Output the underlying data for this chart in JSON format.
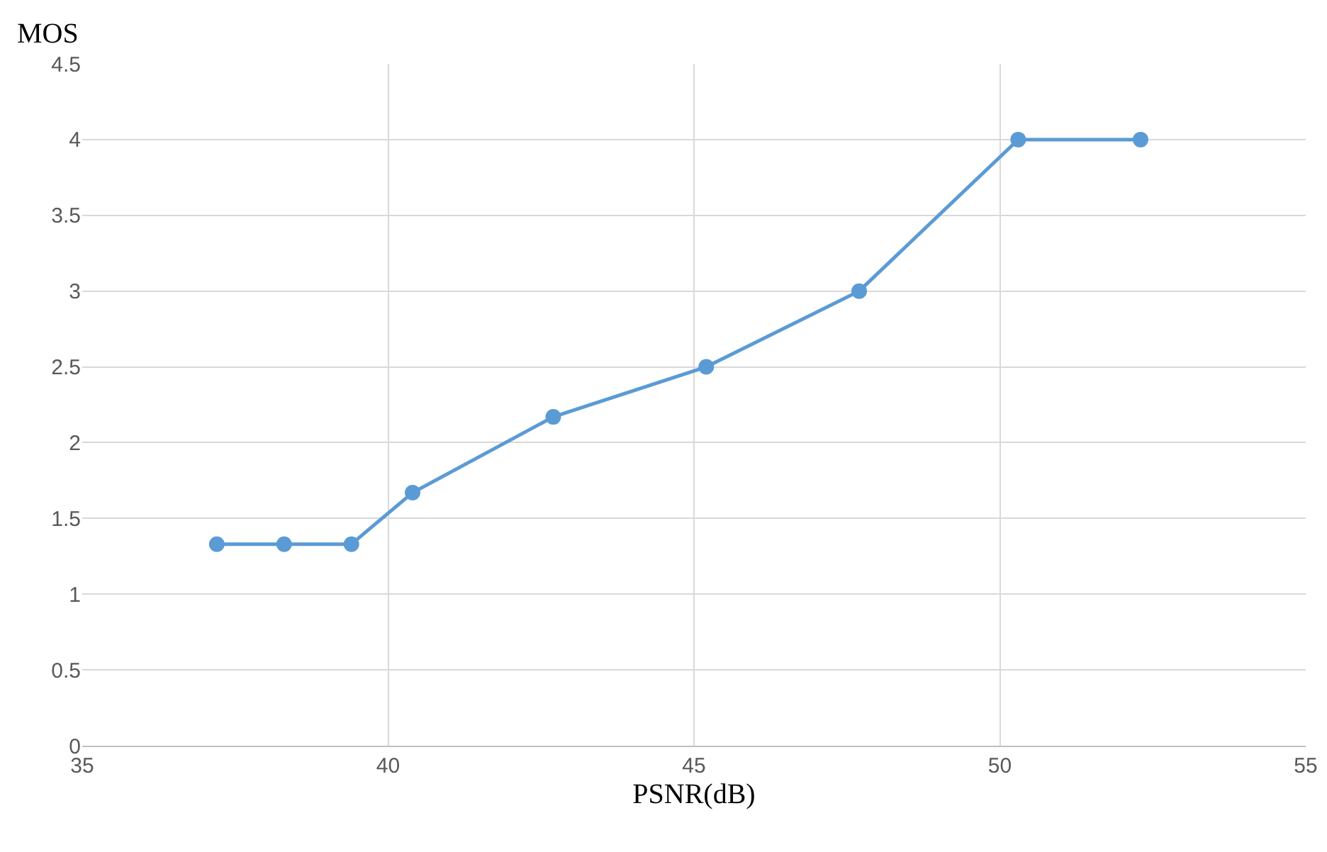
{
  "chart_data": {
    "type": "line",
    "xlabel": "PSNR(dB)",
    "ylabel": "MOS",
    "x": [
      37.2,
      38.3,
      39.4,
      40.4,
      42.7,
      45.2,
      47.7,
      50.3,
      52.3
    ],
    "series": [
      {
        "color": "#5b9bd5",
        "values": [
          1.33,
          1.33,
          1.33,
          1.67,
          2.17,
          2.5,
          3.0,
          4.0,
          4.0
        ]
      }
    ],
    "xlim": [
      35,
      55
    ],
    "xticks": [
      35,
      40,
      45,
      50,
      55
    ],
    "ylim": [
      0,
      4.5
    ],
    "yticks": [
      0,
      0.5,
      1,
      1.5,
      2,
      2.5,
      3,
      3.5,
      4,
      4.5
    ],
    "grid": true,
    "marker": "circle",
    "line_style": "solid",
    "legend": false
  }
}
